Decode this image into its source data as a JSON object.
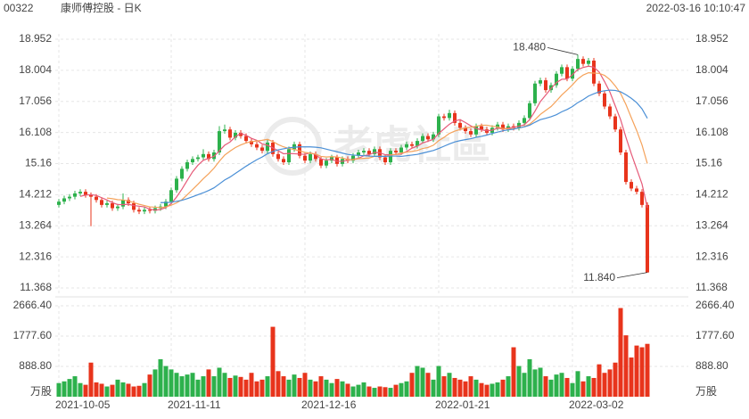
{
  "header": {
    "code": "00322",
    "name": "康师傅控股 - 日K",
    "timestamp": "2022-03-16 10:10:47"
  },
  "watermark": "老虎社區",
  "chart_data": {
    "type": "candlestick",
    "x": [
      "2021-10-05",
      null,
      null,
      null,
      null,
      null,
      null,
      null,
      null,
      null,
      null,
      null,
      null,
      null,
      null,
      null,
      null,
      null,
      null,
      null,
      null,
      "2021-11-11",
      null,
      null,
      null,
      null,
      null,
      null,
      null,
      null,
      null,
      null,
      null,
      null,
      null,
      null,
      null,
      null,
      null,
      null,
      null,
      null,
      null,
      null,
      null,
      null,
      "2021-12-16",
      null,
      null,
      null,
      null,
      null,
      null,
      null,
      null,
      null,
      null,
      null,
      null,
      null,
      null,
      null,
      null,
      null,
      null,
      null,
      null,
      null,
      null,
      null,
      null,
      "2022-01-21",
      null,
      null,
      null,
      null,
      null,
      null,
      null,
      null,
      null,
      null,
      null,
      null,
      null,
      null,
      null,
      null,
      null,
      null,
      null,
      null,
      null,
      null,
      null,
      null,
      "2022-03-02",
      null,
      null,
      null,
      null,
      null,
      null,
      null,
      null,
      null,
      null,
      null,
      null,
      null,
      null
    ],
    "open": [
      13.9,
      14.0,
      14.1,
      14.15,
      14.25,
      14.3,
      14.2,
      14.15,
      14.05,
      13.9,
      13.95,
      13.8,
      13.85,
      14.05,
      13.95,
      13.75,
      13.7,
      13.75,
      13.72,
      13.8,
      13.85,
      14.0,
      14.35,
      14.7,
      15.0,
      15.2,
      15.3,
      15.35,
      15.45,
      15.3,
      15.5,
      16.15,
      16.2,
      15.95,
      16.1,
      16.0,
      15.85,
      15.75,
      15.65,
      15.55,
      15.8,
      15.45,
      15.3,
      15.2,
      15.6,
      15.75,
      15.4,
      15.25,
      15.45,
      15.3,
      15.1,
      15.25,
      15.35,
      15.15,
      15.3,
      15.25,
      15.4,
      15.5,
      15.55,
      15.45,
      15.6,
      15.35,
      15.2,
      15.55,
      15.5,
      15.65,
      15.75,
      15.7,
      15.85,
      16.0,
      15.9,
      16.05,
      16.6,
      16.55,
      16.7,
      16.4,
      16.25,
      16.15,
      16.05,
      16.3,
      16.2,
      16.1,
      16.25,
      16.35,
      16.2,
      16.3,
      16.25,
      16.4,
      16.55,
      17.0,
      17.6,
      17.7,
      17.4,
      17.55,
      17.9,
      18.1,
      17.75,
      18.05,
      18.35,
      18.2,
      18.3,
      17.6,
      17.3,
      16.9,
      16.6,
      16.2,
      15.5,
      14.6,
      14.4,
      14.3,
      13.9
    ],
    "high": [
      14.08,
      14.18,
      14.23,
      14.33,
      14.38,
      14.38,
      14.28,
      14.23,
      14.13,
      14.03,
      14.03,
      13.93,
      14.25,
      14.13,
      14.03,
      13.83,
      13.83,
      13.83,
      13.88,
      13.93,
      14.08,
      14.43,
      14.78,
      15.08,
      15.28,
      15.38,
      15.43,
      15.6,
      15.53,
      15.58,
      16.3,
      16.35,
      16.28,
      16.18,
      16.18,
      16.08,
      15.93,
      15.83,
      15.73,
      15.88,
      15.88,
      15.53,
      15.38,
      15.68,
      15.83,
      15.83,
      15.48,
      15.53,
      15.53,
      15.38,
      15.33,
      15.43,
      15.43,
      15.38,
      15.38,
      15.48,
      15.58,
      15.63,
      15.63,
      15.68,
      15.68,
      15.43,
      15.63,
      15.63,
      15.73,
      15.83,
      15.83,
      15.93,
      16.08,
      16.08,
      16.13,
      16.68,
      16.68,
      16.8,
      16.78,
      16.48,
      16.33,
      16.23,
      16.38,
      16.38,
      16.28,
      16.33,
      16.43,
      16.43,
      16.38,
      16.38,
      16.48,
      16.63,
      17.08,
      17.68,
      17.78,
      17.78,
      17.63,
      17.98,
      18.18,
      18.18,
      18.13,
      18.48,
      18.43,
      18.38,
      18.38,
      17.68,
      17.38,
      16.98,
      16.68,
      16.28,
      15.58,
      14.68,
      14.48,
      14.38,
      13.98
    ],
    "low": [
      13.82,
      13.92,
      14.02,
      14.07,
      14.17,
      14.12,
      13.25,
      13.97,
      13.82,
      13.82,
      13.72,
      13.72,
      13.77,
      13.87,
      13.67,
      13.62,
      13.62,
      13.64,
      13.64,
      13.72,
      13.77,
      13.92,
      14.27,
      14.62,
      14.92,
      15.12,
      15.22,
      15.27,
      15.22,
      15.22,
      15.42,
      16.07,
      15.87,
      15.87,
      15.92,
      15.77,
      15.67,
      15.57,
      15.47,
      15.47,
      15.37,
      15.22,
      15.12,
      15.12,
      15.52,
      15.32,
      15.17,
      15.17,
      15.22,
      15.02,
      15.02,
      15.17,
      15.07,
      15.07,
      15.17,
      15.17,
      15.32,
      15.42,
      15.37,
      15.37,
      15.27,
      15.12,
      15.12,
      15.42,
      15.42,
      15.57,
      15.62,
      15.62,
      15.77,
      15.82,
      15.82,
      15.97,
      16.47,
      16.47,
      16.32,
      16.17,
      16.07,
      15.97,
      15.97,
      16.12,
      16.02,
      16.02,
      16.17,
      16.12,
      16.12,
      16.17,
      16.17,
      16.32,
      16.47,
      16.92,
      17.52,
      17.32,
      17.32,
      17.47,
      17.82,
      17.67,
      17.67,
      17.97,
      18.12,
      18.12,
      17.52,
      17.22,
      16.82,
      16.52,
      16.12,
      15.42,
      14.52,
      14.32,
      14.22,
      13.82,
      11.84
    ],
    "close": [
      14.0,
      14.1,
      14.15,
      14.25,
      14.3,
      14.2,
      14.15,
      14.05,
      13.9,
      13.95,
      13.8,
      13.85,
      14.05,
      13.95,
      13.75,
      13.7,
      13.75,
      13.72,
      13.8,
      13.85,
      14.0,
      14.35,
      14.7,
      15.0,
      15.2,
      15.3,
      15.35,
      15.45,
      15.3,
      15.5,
      16.15,
      16.2,
      15.95,
      16.1,
      16.0,
      15.85,
      15.75,
      15.65,
      15.55,
      15.8,
      15.45,
      15.3,
      15.2,
      15.6,
      15.75,
      15.4,
      15.25,
      15.45,
      15.3,
      15.1,
      15.25,
      15.35,
      15.15,
      15.3,
      15.25,
      15.4,
      15.5,
      15.55,
      15.45,
      15.6,
      15.35,
      15.2,
      15.55,
      15.5,
      15.65,
      15.75,
      15.7,
      15.85,
      16.0,
      15.9,
      16.05,
      16.6,
      16.55,
      16.7,
      16.4,
      16.25,
      16.15,
      16.05,
      16.3,
      16.2,
      16.1,
      16.25,
      16.35,
      16.2,
      16.3,
      16.25,
      16.4,
      16.55,
      17.0,
      17.6,
      17.7,
      17.4,
      17.55,
      17.9,
      18.1,
      17.75,
      18.05,
      18.35,
      18.2,
      18.3,
      17.6,
      17.3,
      16.9,
      16.6,
      16.2,
      15.5,
      14.6,
      14.4,
      14.3,
      13.9,
      11.84
    ],
    "up_color": "#2db14c",
    "down_color": "#e8341c",
    "ylim": [
      11.368,
      18.952
    ],
    "yticks": [
      18.952,
      18.004,
      17.056,
      16.108,
      15.16,
      14.212,
      13.264,
      12.316,
      11.368
    ],
    "grid": true,
    "ma_lines": [
      {
        "color": "#e65a78",
        "values": [
          null,
          null,
          null,
          null,
          14.16,
          14.2,
          14.21,
          14.19,
          14.12,
          14.05,
          13.97,
          13.91,
          13.91,
          13.92,
          13.88,
          13.86,
          13.84,
          13.77,
          13.74,
          13.76,
          13.82,
          13.94,
          14.14,
          14.38,
          14.65,
          14.91,
          15.11,
          15.26,
          15.32,
          15.38,
          15.55,
          15.72,
          15.82,
          15.98,
          16.08,
          16.02,
          15.93,
          15.87,
          15.76,
          15.72,
          15.64,
          15.55,
          15.46,
          15.47,
          15.46,
          15.45,
          15.44,
          15.49,
          15.43,
          15.3,
          15.27,
          15.29,
          15.23,
          15.23,
          15.26,
          15.29,
          15.32,
          15.4,
          15.43,
          15.5,
          15.49,
          15.43,
          15.43,
          15.44,
          15.45,
          15.53,
          15.63,
          15.69,
          15.79,
          15.84,
          15.9,
          16.08,
          16.22,
          16.36,
          16.46,
          16.5,
          16.41,
          16.31,
          16.23,
          16.19,
          16.16,
          16.18,
          16.24,
          16.22,
          16.24,
          16.27,
          16.3,
          16.34,
          16.5,
          16.76,
          17.05,
          17.25,
          17.45,
          17.63,
          17.73,
          17.74,
          17.87,
          18.03,
          18.09,
          18.13,
          18.1,
          17.95,
          17.66,
          17.34,
          16.92,
          16.5,
          15.96,
          15.46,
          15.0,
          14.54,
          13.81
        ]
      },
      {
        "color": "#f5a25a",
        "values": [
          null,
          null,
          null,
          null,
          null,
          null,
          null,
          null,
          null,
          14.11,
          14.09,
          14.06,
          14.05,
          14.02,
          13.97,
          13.92,
          13.88,
          13.84,
          13.83,
          13.82,
          13.84,
          13.89,
          13.96,
          14.06,
          14.21,
          14.37,
          14.53,
          14.7,
          14.85,
          15.02,
          15.23,
          15.42,
          15.54,
          15.65,
          15.73,
          15.79,
          15.83,
          15.85,
          15.87,
          15.9,
          15.83,
          15.74,
          15.67,
          15.62,
          15.59,
          15.55,
          15.5,
          15.48,
          15.45,
          15.38,
          15.36,
          15.37,
          15.36,
          15.33,
          15.28,
          15.28,
          15.31,
          15.32,
          15.33,
          15.38,
          15.39,
          15.38,
          15.42,
          15.44,
          15.48,
          15.51,
          15.53,
          15.56,
          15.62,
          15.65,
          15.72,
          15.86,
          15.96,
          16.08,
          16.15,
          16.2,
          16.25,
          16.27,
          16.3,
          16.33,
          16.33,
          16.3,
          16.28,
          16.23,
          16.22,
          16.22,
          16.24,
          16.29,
          16.36,
          16.5,
          16.66,
          16.78,
          16.9,
          17.07,
          17.25,
          17.4,
          17.56,
          17.74,
          17.86,
          17.93,
          17.92,
          17.91,
          17.85,
          17.72,
          17.53,
          17.3,
          16.96,
          16.56,
          16.17,
          15.73,
          15.16
        ]
      },
      {
        "color": "#4a8fd6",
        "values": [
          null,
          null,
          null,
          null,
          null,
          null,
          null,
          null,
          null,
          null,
          null,
          null,
          null,
          null,
          null,
          null,
          null,
          null,
          null,
          13.97,
          13.97,
          13.98,
          14.01,
          14.04,
          14.09,
          14.15,
          14.21,
          14.27,
          14.34,
          14.42,
          14.54,
          14.66,
          14.75,
          14.86,
          14.97,
          15.08,
          15.18,
          15.28,
          15.36,
          15.46,
          15.53,
          15.58,
          15.61,
          15.64,
          15.66,
          15.67,
          15.67,
          15.67,
          15.66,
          15.64,
          15.6,
          15.56,
          15.52,
          15.48,
          15.44,
          15.42,
          15.41,
          15.4,
          15.39,
          15.38,
          15.38,
          15.38,
          15.39,
          15.39,
          15.38,
          15.4,
          15.42,
          15.44,
          15.48,
          15.52,
          15.56,
          15.62,
          15.69,
          15.76,
          15.82,
          15.86,
          15.89,
          15.92,
          15.96,
          15.99,
          16.03,
          16.08,
          16.12,
          16.16,
          16.19,
          16.21,
          16.25,
          16.28,
          16.33,
          16.42,
          16.5,
          16.54,
          16.59,
          16.65,
          16.74,
          16.81,
          16.9,
          17.02,
          17.11,
          17.22,
          17.29,
          17.35,
          17.38,
          17.4,
          17.39,
          17.35,
          17.26,
          17.15,
          17.02,
          16.83,
          16.54
        ]
      }
    ],
    "annotations": [
      {
        "text": "18.480",
        "value": 18.48
      },
      {
        "text": "11.840",
        "value": 11.84
      }
    ],
    "volume": {
      "values": [
        400,
        450,
        520,
        600,
        400,
        350,
        1000,
        420,
        380,
        300,
        350,
        500,
        420,
        380,
        300,
        320,
        400,
        650,
        800,
        1100,
        900,
        800,
        700,
        600,
        650,
        700,
        500,
        600,
        800,
        600,
        850,
        700,
        550,
        620,
        580,
        500,
        700,
        450,
        500,
        600,
        2050,
        750,
        600,
        500,
        650,
        550,
        700,
        500,
        450,
        600,
        500,
        400,
        520,
        450,
        380,
        300,
        350,
        420,
        300,
        260,
        300,
        280,
        260,
        350,
        400,
        450,
        700,
        900,
        850,
        700,
        500,
        900,
        600,
        700,
        550,
        500,
        450,
        600,
        500,
        400,
        350,
        380,
        420,
        500,
        600,
        1450,
        900,
        700,
        1100,
        800,
        850,
        600,
        500,
        650,
        700,
        550,
        400,
        750,
        450,
        600,
        550,
        950,
        700,
        800,
        1000,
        2600,
        1800,
        1150,
        1500,
        1450,
        1550
      ],
      "ylim": [
        0,
        2666.4
      ],
      "yticks": [
        {
          "value": 2666.4,
          "label": "2666.40"
        },
        {
          "value": 1777.6,
          "label": "1777.60"
        },
        {
          "value": 888.8,
          "label": "888.80"
        }
      ],
      "unit": "万股"
    }
  }
}
